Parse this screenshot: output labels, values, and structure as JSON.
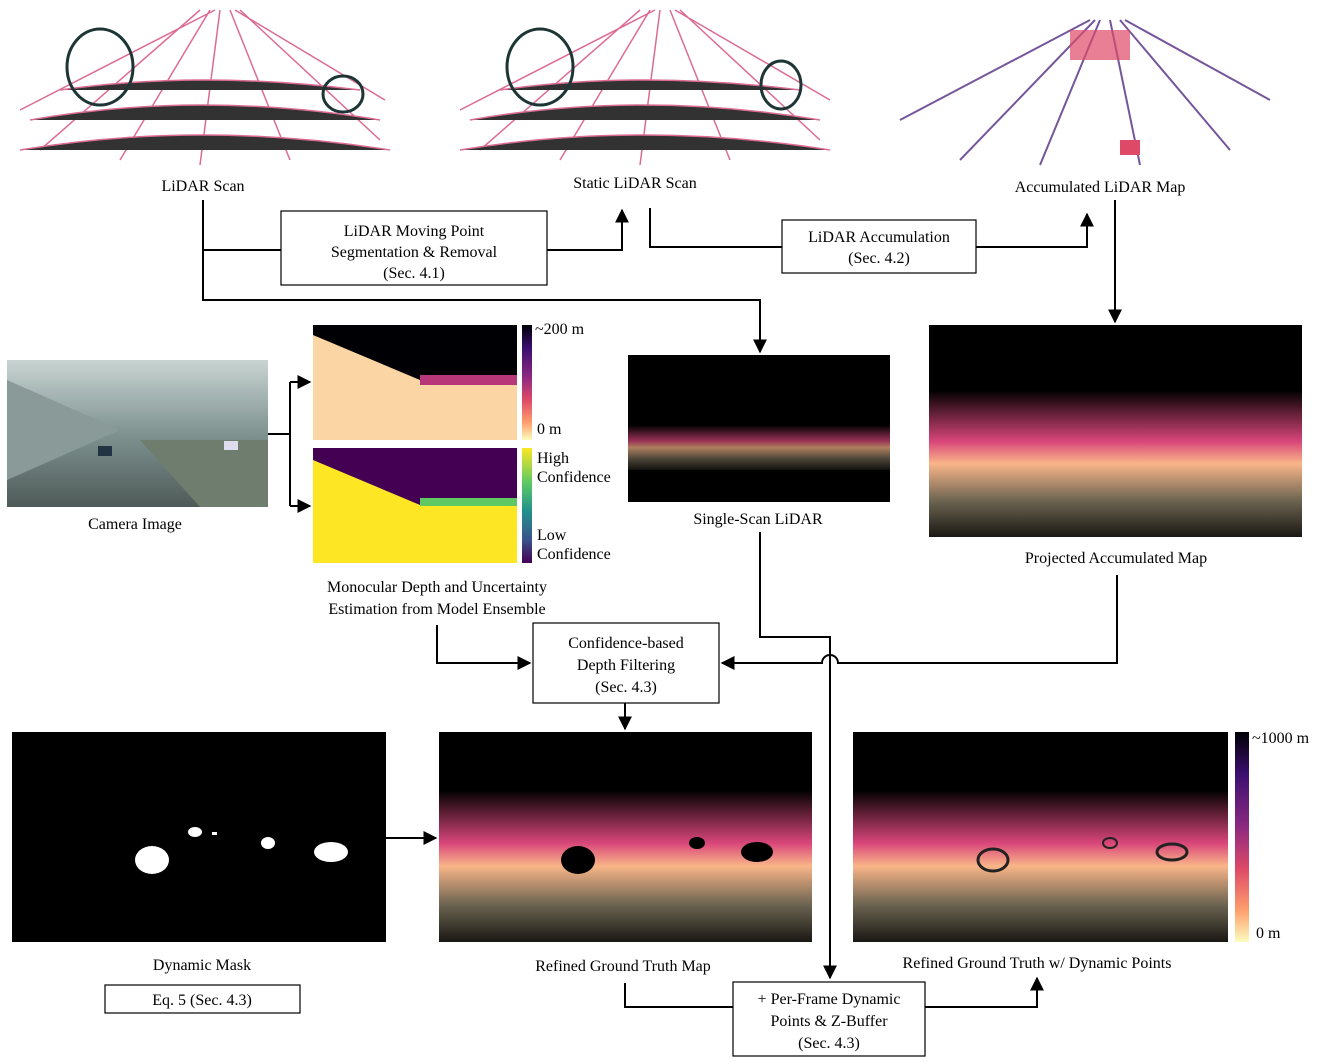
{
  "captions": {
    "lidar_scan": "LiDAR Scan",
    "static_lidar_scan": "Static LiDAR Scan",
    "accumulated_lidar_map": "Accumulated LiDAR Map",
    "camera_image": "Camera Image",
    "single_scan_lidar": "Single-Scan LiDAR",
    "projected_accumulated_map": "Projected Accumulated Map",
    "monocular": [
      "Monocular Depth and Uncertainty",
      "Estimation from Model Ensemble"
    ],
    "dynamic_mask": "Dynamic Mask",
    "refined_gt_map": "Refined Ground Truth Map",
    "refined_gt_dynamic": "Refined Ground Truth w/ Dynamic Points"
  },
  "boxes": {
    "moving_point": [
      "LiDAR Moving Point",
      "Segmentation & Removal",
      "(Sec. 4.1)"
    ],
    "accumulation": [
      "LiDAR Accumulation",
      "(Sec. 4.2)"
    ],
    "confidence_filtering": [
      "Confidence-based",
      "Depth Filtering",
      "(Sec. 4.3)"
    ],
    "eq5": [
      "Eq. 5 (Sec. 4.3)"
    ],
    "per_frame": [
      "+ Per-Frame Dynamic",
      "Points & Z-Buffer",
      "(Sec. 4.3)"
    ]
  },
  "colorbars": {
    "depth": {
      "top": "~200 m",
      "bottom": "0 m"
    },
    "confidence": {
      "top": [
        "High",
        "Confidence"
      ],
      "bottom": [
        "Low",
        "Confidence"
      ]
    },
    "refined": {
      "top": "~1000 m",
      "bottom": "0 m"
    }
  }
}
